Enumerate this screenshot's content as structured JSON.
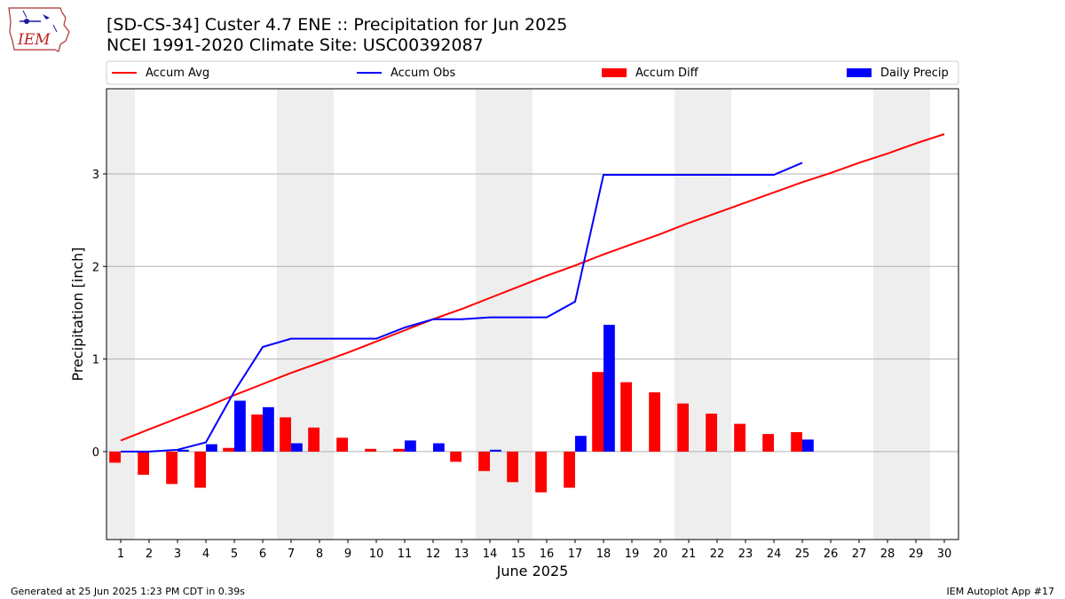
{
  "header": {
    "title": "[SD-CS-34] Custer 4.7 ENE :: Precipitation for Jun 2025",
    "subtitle": "NCEI 1991-2020 Climate Site: USC00392087",
    "logo_text": "IEM"
  },
  "footer": {
    "generated": "Generated at 25 Jun 2025 1:23 PM CDT in 0.39s",
    "app": "IEM Autoplot App #17"
  },
  "colors": {
    "accum_avg": "#ff0000",
    "accum_obs": "#0000ff",
    "accum_diff": "#ff0000",
    "daily_precip": "#0000ff",
    "weekend_shade": "#eeeeee",
    "grid": "#b0b0b0"
  },
  "chart_data": {
    "type": "bar",
    "xlabel": "June 2025",
    "ylabel": "Precipitation [inch]",
    "xlim": [
      0.5,
      30.5
    ],
    "ylim": [
      -0.95,
      3.92
    ],
    "yticks": [
      0,
      1,
      2,
      3
    ],
    "grid": "horizontal",
    "legend_position": "top",
    "days": [
      1,
      2,
      3,
      4,
      5,
      6,
      7,
      8,
      9,
      10,
      11,
      12,
      13,
      14,
      15,
      16,
      17,
      18,
      19,
      20,
      21,
      22,
      23,
      24,
      25,
      26,
      27,
      28,
      29,
      30
    ],
    "weekend_days": [
      1,
      7,
      8,
      14,
      15,
      21,
      22,
      28,
      29
    ],
    "series": [
      {
        "name": "Accum Avg",
        "kind": "line",
        "values": [
          0.12,
          0.24,
          0.36,
          0.48,
          0.61,
          0.73,
          0.85,
          0.96,
          1.07,
          1.19,
          1.31,
          1.43,
          1.54,
          1.66,
          1.78,
          1.9,
          2.01,
          2.13,
          2.24,
          2.35,
          2.47,
          2.58,
          2.69,
          2.8,
          2.91,
          3.01,
          3.12,
          3.22,
          3.33,
          3.43
        ]
      },
      {
        "name": "Accum Obs",
        "kind": "line",
        "values": [
          0.0,
          0.0,
          0.02,
          0.1,
          0.65,
          1.13,
          1.22,
          1.22,
          1.22,
          1.22,
          1.34,
          1.43,
          1.43,
          1.45,
          1.45,
          1.45,
          1.62,
          2.99,
          2.99,
          2.99,
          2.99,
          2.99,
          2.99,
          2.99,
          3.12
        ]
      },
      {
        "name": "Accum Diff",
        "kind": "bar",
        "values": [
          -0.12,
          -0.25,
          -0.35,
          -0.39,
          0.04,
          0.4,
          0.37,
          0.26,
          0.15,
          0.03,
          0.03,
          0.0,
          -0.11,
          -0.21,
          -0.33,
          -0.44,
          -0.39,
          0.86,
          0.75,
          0.64,
          0.52,
          0.41,
          0.3,
          0.19,
          0.21
        ]
      },
      {
        "name": "Daily Precip",
        "kind": "bar",
        "values": [
          0.0,
          0.0,
          0.02,
          0.08,
          0.55,
          0.48,
          0.09,
          0.0,
          0.0,
          0.0,
          0.12,
          0.09,
          0.0,
          0.02,
          0.0,
          0.0,
          0.17,
          1.37,
          0.0,
          0.0,
          0.0,
          0.0,
          0.0,
          0.0,
          0.13
        ]
      }
    ]
  }
}
